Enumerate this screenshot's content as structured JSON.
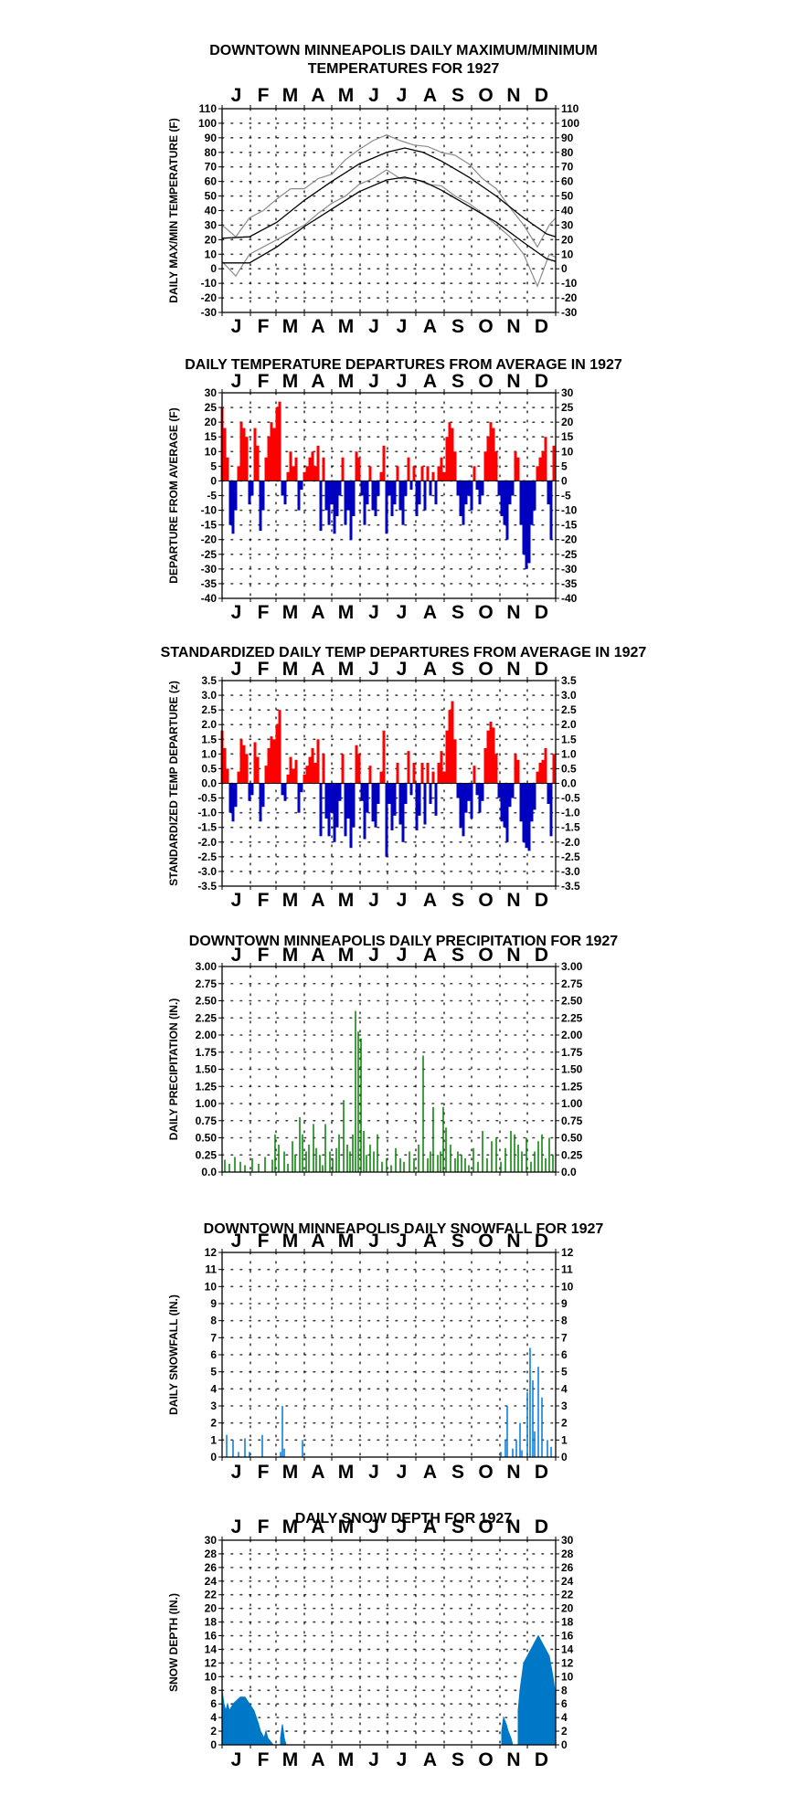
{
  "months": [
    "J",
    "F",
    "M",
    "A",
    "M",
    "J",
    "J",
    "A",
    "S",
    "O",
    "N",
    "D"
  ],
  "chart_data": [
    {
      "type": "line",
      "title": "DOWNTOWN MINNEAPOLIS  DAILY MAXIMUM/MINIMUM",
      "subtitle": "TEMPERATURES FOR 1927",
      "ylabel": "DAILY MAX/MIN TEMPERATURE (F)",
      "ylim": [
        -30,
        110
      ],
      "yticks": [
        -30,
        -20,
        -10,
        0,
        10,
        20,
        30,
        40,
        50,
        60,
        70,
        80,
        90,
        100,
        110
      ],
      "grid": true,
      "series": [
        {
          "values": [
            [
              0,
              30
            ],
            [
              15,
              22
            ],
            [
              30,
              35
            ],
            [
              45,
              40
            ],
            [
              60,
              48
            ],
            [
              75,
              55
            ],
            [
              90,
              55
            ],
            [
              105,
              62
            ],
            [
              120,
              65
            ],
            [
              135,
              75
            ],
            [
              150,
              82
            ],
            [
              165,
              88
            ],
            [
              180,
              92
            ],
            [
              195,
              88
            ],
            [
              210,
              85
            ],
            [
              225,
              84
            ],
            [
              240,
              80
            ],
            [
              255,
              78
            ],
            [
              270,
              72
            ],
            [
              285,
              62
            ],
            [
              300,
              55
            ],
            [
              315,
              42
            ],
            [
              330,
              30
            ],
            [
              345,
              15
            ],
            [
              358,
              30
            ],
            [
              365,
              35
            ]
          ],
          "color": "#8a8a8a"
        },
        {
          "values": [
            [
              0,
              5
            ],
            [
              15,
              -5
            ],
            [
              30,
              10
            ],
            [
              45,
              15
            ],
            [
              60,
              20
            ],
            [
              75,
              25
            ],
            [
              90,
              30
            ],
            [
              105,
              38
            ],
            [
              120,
              45
            ],
            [
              135,
              50
            ],
            [
              150,
              58
            ],
            [
              165,
              62
            ],
            [
              180,
              68
            ],
            [
              195,
              62
            ],
            [
              210,
              62
            ],
            [
              225,
              58
            ],
            [
              240,
              57
            ],
            [
              255,
              50
            ],
            [
              270,
              45
            ],
            [
              285,
              38
            ],
            [
              300,
              30
            ],
            [
              315,
              22
            ],
            [
              330,
              10
            ],
            [
              345,
              -12
            ],
            [
              358,
              10
            ],
            [
              365,
              8
            ]
          ],
          "color": "#8a8a8a"
        },
        {
          "values": [
            [
              0,
              21
            ],
            [
              30,
              22
            ],
            [
              60,
              32
            ],
            [
              90,
              47
            ],
            [
              120,
              60
            ],
            [
              150,
              72
            ],
            [
              180,
              80
            ],
            [
              200,
              83
            ],
            [
              220,
              80
            ],
            [
              240,
              74
            ],
            [
              270,
              63
            ],
            [
              300,
              50
            ],
            [
              330,
              35
            ],
            [
              355,
              24
            ],
            [
              365,
              22
            ]
          ],
          "color": "#000000"
        },
        {
          "values": [
            [
              0,
              4
            ],
            [
              30,
              4
            ],
            [
              60,
              15
            ],
            [
              90,
              29
            ],
            [
              120,
              41
            ],
            [
              150,
              53
            ],
            [
              180,
              61
            ],
            [
              200,
              63
            ],
            [
              220,
              60
            ],
            [
              240,
              54
            ],
            [
              270,
              43
            ],
            [
              300,
              32
            ],
            [
              330,
              18
            ],
            [
              355,
              7
            ],
            [
              365,
              5
            ]
          ],
          "color": "#000000"
        }
      ]
    },
    {
      "type": "bar",
      "title": "DAILY TEMPERATURE DEPARTURES FROM AVERAGE IN 1927",
      "ylabel": "DEPARTURE FROM AVERAGE (F)",
      "ylim": [
        -40,
        30
      ],
      "yticks": [
        -40,
        -35,
        -30,
        -25,
        -20,
        -15,
        -10,
        -5,
        0,
        5,
        10,
        15,
        20,
        25,
        30
      ],
      "grid": true,
      "positive_color": "#ff0000",
      "negative_color": "#0000c0",
      "x": [
        0,
        3,
        6,
        9,
        12,
        15,
        18,
        21,
        24,
        27,
        30,
        33,
        36,
        39,
        42,
        45,
        48,
        51,
        54,
        57,
        60,
        63,
        66,
        69,
        72,
        75,
        78,
        81,
        84,
        87,
        90,
        93,
        96,
        99,
        102,
        105,
        108,
        111,
        114,
        117,
        120,
        123,
        126,
        129,
        132,
        135,
        138,
        141,
        144,
        147,
        150,
        153,
        156,
        159,
        162,
        165,
        168,
        171,
        174,
        177,
        180,
        183,
        186,
        189,
        192,
        195,
        198,
        201,
        204,
        207,
        210,
        213,
        216,
        219,
        222,
        225,
        228,
        231,
        234,
        237,
        240,
        243,
        246,
        249,
        252,
        255,
        258,
        261,
        264,
        267,
        270,
        273,
        276,
        279,
        282,
        285,
        288,
        291,
        294,
        297,
        300,
        303,
        306,
        309,
        312,
        315,
        318,
        321,
        324,
        327,
        330,
        333,
        336,
        339,
        342,
        345,
        348,
        351,
        354,
        357,
        360,
        363
      ],
      "values": [
        25,
        18,
        8,
        -15,
        -18,
        -10,
        5,
        20,
        18,
        15,
        -8,
        -5,
        18,
        12,
        -17,
        -10,
        8,
        15,
        20,
        18,
        25,
        27,
        -5,
        -8,
        3,
        10,
        5,
        8,
        -10,
        -3,
        3,
        5,
        8,
        10,
        5,
        12,
        -17,
        8,
        -10,
        -15,
        -8,
        -18,
        -12,
        -5,
        8,
        -15,
        -10,
        -20,
        -12,
        10,
        8,
        -5,
        -15,
        -8,
        5,
        -10,
        -12,
        -5,
        3,
        12,
        -18,
        -5,
        -12,
        -8,
        5,
        -10,
        -15,
        -5,
        8,
        -3,
        5,
        -12,
        -8,
        5,
        -10,
        5,
        -5,
        3,
        -8,
        5,
        8,
        3,
        15,
        20,
        18,
        10,
        -5,
        -12,
        -15,
        -8,
        -5,
        -10,
        5,
        -3,
        -8,
        -5,
        10,
        15,
        20,
        18,
        10,
        -5,
        -12,
        -15,
        -20,
        -8,
        -5,
        10,
        8,
        -15,
        -25,
        -30,
        -28,
        -15,
        -10,
        5,
        8,
        10,
        15,
        -8,
        -20,
        12
      ]
    },
    {
      "type": "bar",
      "title": "STANDARDIZED DAILY TEMP DEPARTURES FROM AVERAGE IN 1927",
      "ylabel": "STANDARDIZED TEMP DEPARTURE (z)",
      "ylim": [
        -3.5,
        3.5
      ],
      "yticks": [
        -3.5,
        -3.0,
        -2.5,
        -2.0,
        -1.5,
        -1.0,
        -0.5,
        0.0,
        0.5,
        1.0,
        1.5,
        2.0,
        2.5,
        3.0,
        3.5
      ],
      "grid": true,
      "positive_color": "#ff0000",
      "negative_color": "#0000c0",
      "x": [
        0,
        3,
        6,
        9,
        12,
        15,
        18,
        21,
        24,
        27,
        30,
        33,
        36,
        39,
        42,
        45,
        48,
        51,
        54,
        57,
        60,
        63,
        66,
        69,
        72,
        75,
        78,
        81,
        84,
        87,
        90,
        93,
        96,
        99,
        102,
        105,
        108,
        111,
        114,
        117,
        120,
        123,
        126,
        129,
        132,
        135,
        138,
        141,
        144,
        147,
        150,
        153,
        156,
        159,
        162,
        165,
        168,
        171,
        174,
        177,
        180,
        183,
        186,
        189,
        192,
        195,
        198,
        201,
        204,
        207,
        210,
        213,
        216,
        219,
        222,
        225,
        228,
        231,
        234,
        237,
        240,
        243,
        246,
        249,
        252,
        255,
        258,
        261,
        264,
        267,
        270,
        273,
        276,
        279,
        282,
        285,
        288,
        291,
        294,
        297,
        300,
        303,
        306,
        309,
        312,
        315,
        318,
        321,
        324,
        327,
        330,
        333,
        336,
        339,
        342,
        345,
        348,
        351,
        354,
        357,
        360,
        363
      ],
      "values": [
        1.8,
        1.2,
        0.5,
        -1.0,
        -1.3,
        -0.8,
        0.4,
        1.5,
        1.3,
        1.0,
        -0.6,
        -0.4,
        1.4,
        0.9,
        -1.3,
        -0.8,
        0.6,
        1.2,
        1.6,
        1.5,
        2.0,
        2.5,
        -0.4,
        -0.6,
        0.3,
        0.9,
        0.5,
        0.8,
        -1.0,
        -0.3,
        0.3,
        0.6,
        0.9,
        1.2,
        0.7,
        1.5,
        -1.8,
        1.0,
        -1.2,
        -1.8,
        -1.0,
        -2.0,
        -1.5,
        -0.6,
        1.0,
        -1.8,
        -1.2,
        -2.2,
        -1.5,
        1.3,
        1.0,
        -0.6,
        -1.9,
        -1.0,
        0.6,
        -1.3,
        -1.5,
        -0.7,
        0.4,
        1.8,
        -2.5,
        -0.7,
        -1.6,
        -1.1,
        0.7,
        -1.4,
        -2.0,
        -0.7,
        1.1,
        -0.4,
        0.7,
        -1.6,
        -1.1,
        0.7,
        -1.4,
        0.7,
        -0.7,
        0.4,
        -1.1,
        0.7,
        1.1,
        0.4,
        1.8,
        2.5,
        2.8,
        1.5,
        -0.5,
        -1.5,
        -1.8,
        -1.0,
        -0.6,
        -1.2,
        0.6,
        -0.4,
        -1.0,
        -0.6,
        1.2,
        1.8,
        2.1,
        1.9,
        1.0,
        -0.5,
        -1.3,
        -1.5,
        -2.0,
        -0.8,
        -0.5,
        1.0,
        0.8,
        -1.3,
        -2.0,
        -2.2,
        -2.3,
        -1.3,
        -0.9,
        0.4,
        0.7,
        0.8,
        1.2,
        -0.7,
        -1.8,
        1.0
      ]
    },
    {
      "type": "bar",
      "title": "DOWNTOWN MINNEAPOLIS  DAILY PRECIPITATION FOR 1927",
      "ylabel": "DAILY PRECIPITATION (IN.)",
      "ylim": [
        0,
        3.0
      ],
      "yticks": [
        0.0,
        0.25,
        0.5,
        0.75,
        1.0,
        1.25,
        1.5,
        1.75,
        2.0,
        2.25,
        2.5,
        2.75,
        3.0
      ],
      "ytick_labels": [
        "0.0",
        "0.25",
        "0.50",
        "0.75",
        "1.00",
        "1.25",
        "1.50",
        "1.75",
        "2.00",
        "2.25",
        "2.50",
        "2.75",
        "3.00"
      ],
      "grid": true,
      "color": "#008000",
      "x": [
        3,
        8,
        14,
        20,
        25,
        33,
        40,
        47,
        55,
        58,
        62,
        68,
        72,
        77,
        80,
        85,
        88,
        92,
        95,
        100,
        103,
        107,
        110,
        113,
        118,
        121,
        125,
        128,
        133,
        137,
        140,
        143,
        146,
        149,
        152,
        155,
        158,
        162,
        166,
        170,
        175,
        180,
        185,
        190,
        195,
        199,
        205,
        210,
        215,
        220,
        225,
        228,
        231,
        236,
        239,
        242,
        245,
        250,
        255,
        258,
        262,
        266,
        270,
        275,
        280,
        285,
        290,
        295,
        300,
        305,
        310,
        316,
        320,
        324,
        328,
        333,
        338,
        342,
        346,
        350,
        354,
        358,
        362
      ],
      "values": [
        0.18,
        0.12,
        0.22,
        0.15,
        0.1,
        0.2,
        0.12,
        0.22,
        0.18,
        0.55,
        0.4,
        0.3,
        0.12,
        0.45,
        0.25,
        0.8,
        0.55,
        0.3,
        0.4,
        0.7,
        0.35,
        0.25,
        0.1,
        0.7,
        0.3,
        0.2,
        0.35,
        0.55,
        1.05,
        0.4,
        0.3,
        0.55,
        2.35,
        2.05,
        1.95,
        0.6,
        0.25,
        0.4,
        0.3,
        0.55,
        0.15,
        0.2,
        0.1,
        0.35,
        0.2,
        0.15,
        0.3,
        0.2,
        0.4,
        1.7,
        0.2,
        0.3,
        0.95,
        0.25,
        0.3,
        0.95,
        0.65,
        0.4,
        0.2,
        0.3,
        0.25,
        0.2,
        0.1,
        0.35,
        0.15,
        0.6,
        0.2,
        0.45,
        0.5,
        0.15,
        0.35,
        0.6,
        0.55,
        0.4,
        0.3,
        0.5,
        0.15,
        0.3,
        0.45,
        0.55,
        0.2,
        0.5,
        0.25
      ]
    },
    {
      "type": "bar",
      "title": "DOWNTOWN MINNEAPOLIS  DAILY SNOWFALL FOR 1927",
      "ylabel": "DAILY SNOWFALL (IN.)",
      "ylim": [
        0,
        12
      ],
      "yticks": [
        0,
        1,
        2,
        3,
        4,
        5,
        6,
        7,
        8,
        9,
        10,
        11,
        12
      ],
      "grid": true,
      "color": "#0078d7",
      "x": [
        5,
        12,
        18,
        25,
        30,
        44,
        64,
        66,
        68,
        88,
        305,
        310,
        312,
        318,
        322,
        326,
        328,
        334,
        337,
        340,
        342,
        346,
        350,
        356,
        360
      ],
      "values": [
        1.3,
        1.0,
        0.3,
        1.1,
        0.3,
        1.3,
        0.3,
        3.0,
        0.5,
        1.0,
        0.3,
        1.0,
        3.0,
        0.5,
        1.0,
        2.0,
        0.4,
        3.8,
        6.4,
        4.5,
        1.5,
        5.3,
        3.5,
        1.0,
        0.6
      ]
    },
    {
      "type": "area",
      "title": "DAILY SNOW DEPTH FOR 1927",
      "ylabel": "SNOW DEPTH (IN.)",
      "ylim": [
        0,
        30
      ],
      "yticks": [
        0,
        2,
        4,
        6,
        8,
        10,
        12,
        14,
        16,
        18,
        20,
        22,
        24,
        26,
        28,
        30
      ],
      "grid": true,
      "color": "#0078c8",
      "x": [
        0,
        2,
        4,
        6,
        8,
        12,
        16,
        20,
        25,
        30,
        35,
        40,
        42,
        44,
        46,
        48,
        50,
        53,
        56,
        58,
        60,
        62,
        64,
        66,
        68,
        70,
        300,
        304,
        306,
        308,
        311,
        313,
        316,
        318,
        320,
        322,
        324,
        326,
        328,
        330,
        334,
        338,
        342,
        346,
        350,
        354,
        358,
        362,
        364
      ],
      "values": [
        8,
        6,
        5,
        6,
        5,
        6,
        6.5,
        7,
        7,
        6,
        5,
        3,
        2,
        1.5,
        1,
        2,
        1,
        0.5,
        0,
        0,
        0,
        0,
        1,
        3,
        1,
        0,
        0,
        0,
        2,
        4,
        3,
        2,
        1,
        0,
        0,
        0,
        5,
        8,
        10,
        12,
        13,
        14,
        15,
        16,
        15,
        14,
        13,
        10,
        8
      ]
    }
  ]
}
